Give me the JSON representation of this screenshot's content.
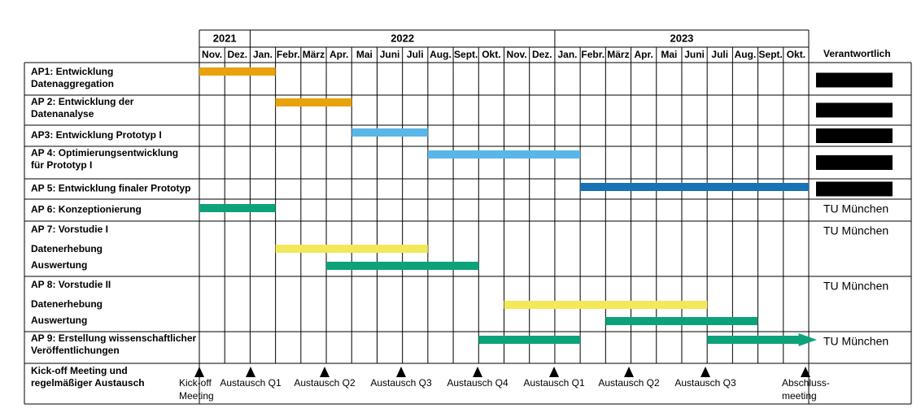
{
  "header": {
    "years": [
      "2021",
      "2022",
      "2023"
    ],
    "months": [
      "Nov.",
      "Dez.",
      "Jan.",
      "Febr.",
      "März",
      "Apr.",
      "Mai",
      "Juni",
      "Juli",
      "Aug.",
      "Sept.",
      "Okt.",
      "Nov.",
      "Dez.",
      "Jan.",
      "Febr.",
      "März",
      "Apr.",
      "Mai",
      "Juni",
      "Juli",
      "Aug.",
      "Sept.",
      "Okt."
    ],
    "responsible_header": "Verantwortlich"
  },
  "rows": [
    {
      "label": [
        "AP1: Entwicklung",
        "Datenaggregation"
      ]
    },
    {
      "label": [
        "AP 2: Entwicklung der",
        "Datenanalyse"
      ]
    },
    {
      "label": [
        "AP3: Entwicklung Prototyp I"
      ]
    },
    {
      "label": [
        "AP 4: Optimierungsentwicklung",
        "für Prototyp I"
      ]
    },
    {
      "label": [
        "AP 5: Entwicklung finaler Prototyp"
      ]
    },
    {
      "label": [
        "AP 6: Konzeptionierung"
      ],
      "responsible": "TU München"
    },
    {
      "label": [
        "AP 7: Vorstudie I"
      ],
      "sublabels": [
        "Datenerhebung",
        "Auswertung"
      ],
      "responsible": "TU München"
    },
    {
      "label": [
        "AP 8: Vorstudie II"
      ],
      "sublabels": [
        "Datenerhebung",
        "Auswertung"
      ],
      "responsible": "TU München"
    },
    {
      "label": [
        "AP  9: Erstellung wissenschaftlicher",
        "Veröffentlichungen"
      ],
      "responsible": "TU München"
    }
  ],
  "milestones": {
    "label": [
      "Kick-off Meeting und",
      "regelmäßiger Austausch"
    ],
    "items": [
      [
        "Kick-off",
        "Meeting"
      ],
      [
        "Austausch Q1"
      ],
      [
        "Austausch Q2"
      ],
      [
        "Austausch Q3"
      ],
      [
        "Austausch Q4"
      ],
      [
        "Austausch Q1"
      ],
      [
        "Austausch Q2"
      ],
      [
        "Austausch Q3"
      ],
      [
        "Abschluss-",
        "meeting"
      ]
    ]
  }
}
